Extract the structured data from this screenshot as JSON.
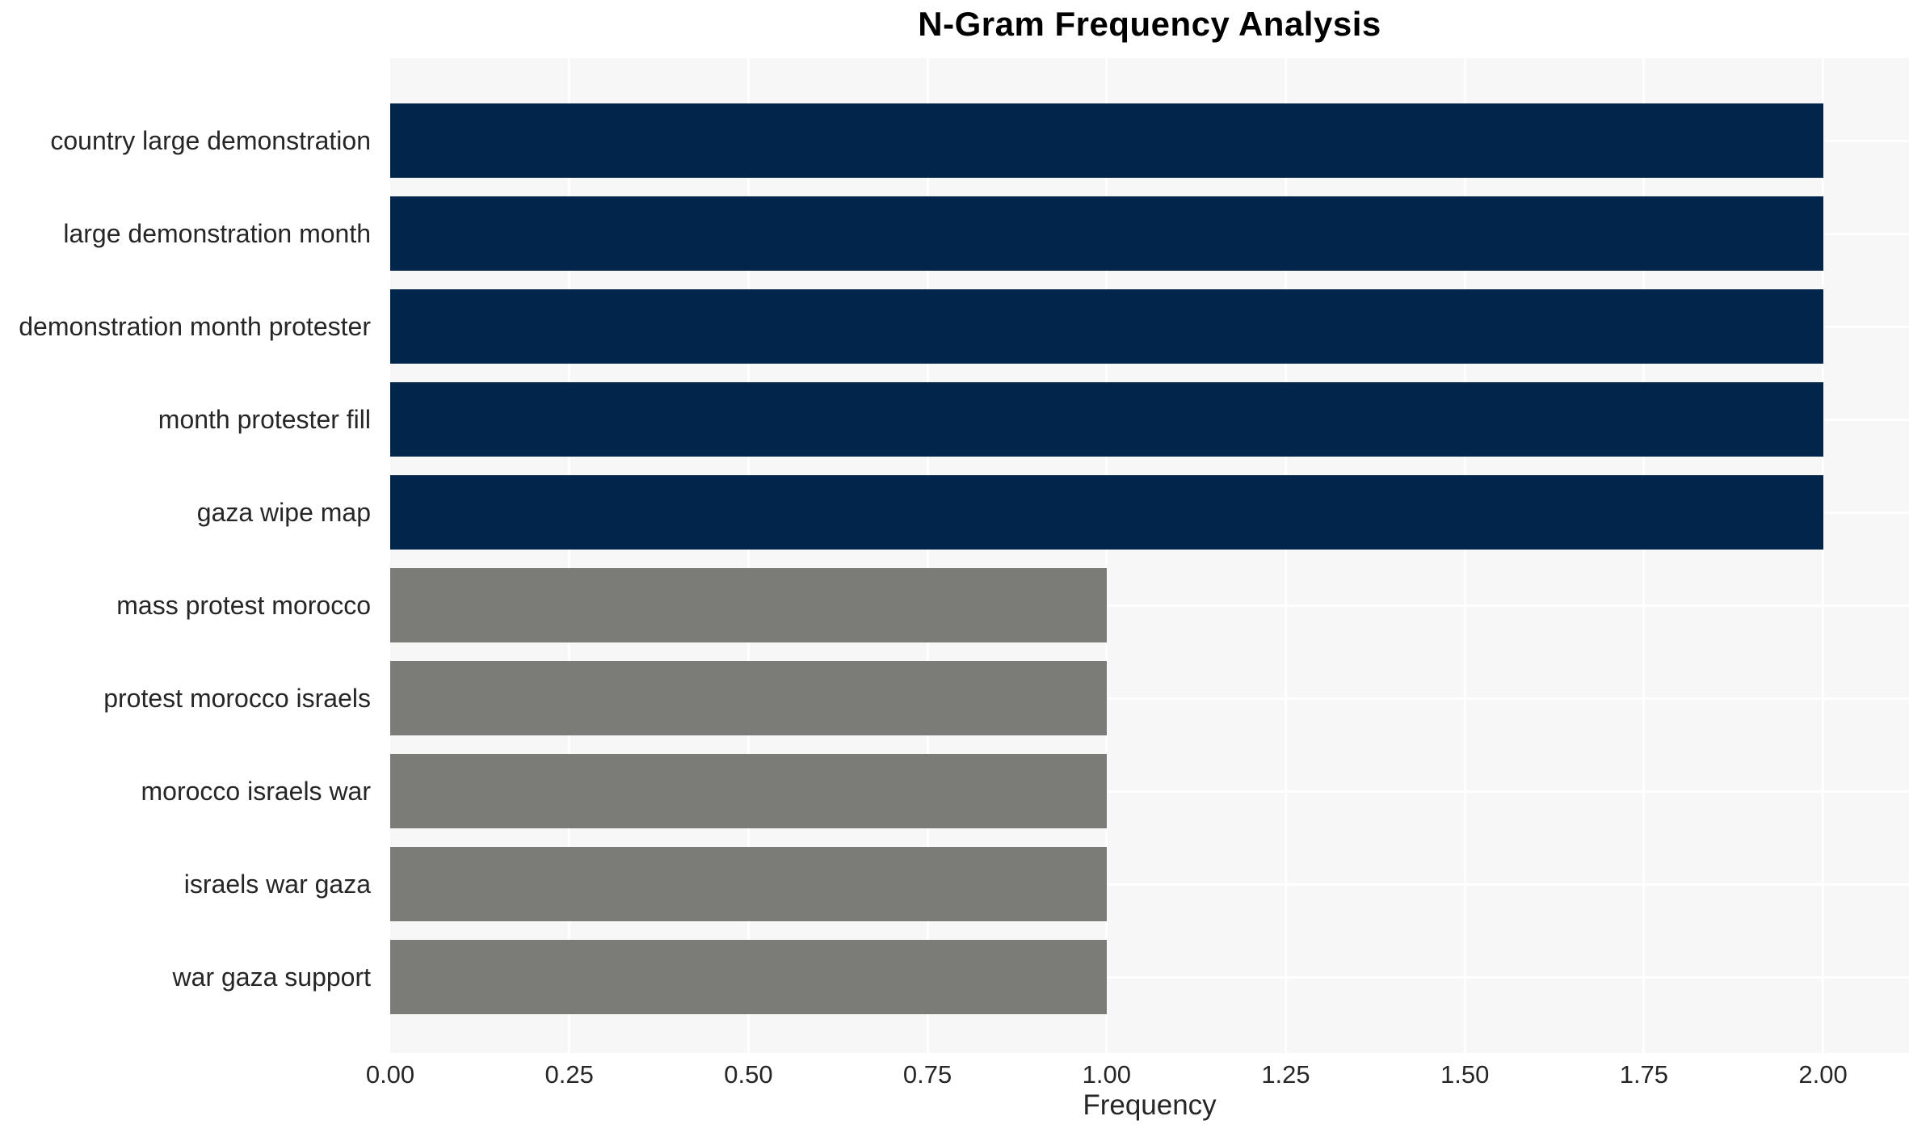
{
  "chart_data": {
    "type": "bar",
    "orientation": "horizontal",
    "title": "N-Gram Frequency Analysis",
    "xlabel": "Frequency",
    "ylabel": "",
    "categories": [
      "country large demonstration",
      "large demonstration month",
      "demonstration month protester",
      "month protester fill",
      "gaza wipe map",
      "mass protest morocco",
      "protest morocco israels",
      "morocco israels war",
      "israels war gaza",
      "war gaza support"
    ],
    "values": [
      2,
      2,
      2,
      2,
      2,
      1,
      1,
      1,
      1,
      1
    ],
    "bar_colors": [
      "#02254c",
      "#02254c",
      "#02254c",
      "#02254c",
      "#02254c",
      "#7b7b78",
      "#7b7b78",
      "#7b7b78",
      "#7b7b78",
      "#7b7b78"
    ],
    "xticks": [
      0,
      0.25,
      0.5,
      0.75,
      1.0,
      1.25,
      1.5,
      1.75,
      2.0
    ],
    "xtick_labels": [
      "0.00",
      "0.25",
      "0.50",
      "0.75",
      "1.00",
      "1.25",
      "1.50",
      "1.75",
      "2.00"
    ],
    "xlim": [
      0,
      2.12
    ],
    "grid": true,
    "legend_position": "none",
    "colors": {
      "plot_background": "#f7f7f7",
      "grid": "#ffffff",
      "tick_text": "#262626",
      "title_text": "#000000"
    }
  }
}
